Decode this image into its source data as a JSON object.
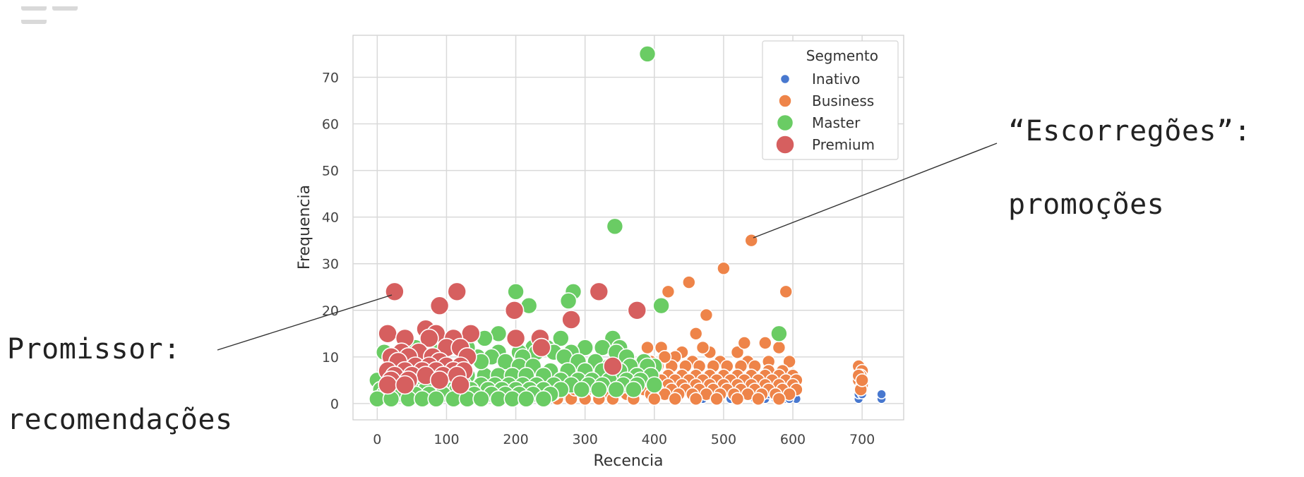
{
  "annotations": {
    "right_line1": "“Escorregões”:",
    "right_line2": "promoções",
    "left_line1": "Promissor:",
    "left_line2": "recomendações"
  },
  "chart_data": {
    "type": "scatter",
    "xlabel": "Recencia",
    "ylabel": "Frequencia",
    "xlim": [
      -35,
      760
    ],
    "ylim": [
      -3.5,
      79
    ],
    "xticks": [
      0,
      100,
      200,
      300,
      400,
      500,
      600,
      700
    ],
    "yticks": [
      0,
      10,
      20,
      30,
      40,
      50,
      60,
      70
    ],
    "grid": true,
    "legend": {
      "title": "Segmento",
      "position": "top-right"
    },
    "series": [
      {
        "name": "Inativo",
        "color": "#4878cf",
        "points": [
          [
            545,
            1
          ],
          [
            560,
            1
          ],
          [
            575,
            1
          ],
          [
            590,
            1
          ],
          [
            600,
            2
          ],
          [
            605,
            1
          ],
          [
            580,
            2
          ],
          [
            565,
            2
          ],
          [
            470,
            1
          ],
          [
            490,
            1
          ],
          [
            510,
            1
          ],
          [
            695,
            1
          ],
          [
            695,
            2
          ],
          [
            698,
            3
          ],
          [
            700,
            2
          ],
          [
            728,
            1
          ],
          [
            728,
            2
          ],
          [
            520,
            1
          ],
          [
            535,
            2
          ],
          [
            550,
            2
          ],
          [
            595,
            1
          ]
        ]
      },
      {
        "name": "Business",
        "color": "#ee8449",
        "points": [
          [
            540,
            35
          ],
          [
            500,
            29
          ],
          [
            450,
            26
          ],
          [
            420,
            24
          ],
          [
            590,
            24
          ],
          [
            475,
            19
          ],
          [
            460,
            15
          ],
          [
            580,
            12
          ],
          [
            390,
            12
          ],
          [
            410,
            12
          ],
          [
            440,
            11
          ],
          [
            480,
            11
          ],
          [
            520,
            11
          ],
          [
            530,
            13
          ],
          [
            560,
            13
          ],
          [
            470,
            12
          ],
          [
            430,
            10
          ],
          [
            455,
            9
          ],
          [
            495,
            9
          ],
          [
            535,
            9
          ],
          [
            565,
            9
          ],
          [
            595,
            9
          ],
          [
            405,
            8
          ],
          [
            425,
            8
          ],
          [
            445,
            8
          ],
          [
            465,
            8
          ],
          [
            485,
            8
          ],
          [
            505,
            8
          ],
          [
            525,
            8
          ],
          [
            545,
            8
          ],
          [
            565,
            7
          ],
          [
            585,
            7
          ],
          [
            400,
            6
          ],
          [
            420,
            6
          ],
          [
            440,
            6
          ],
          [
            460,
            6
          ],
          [
            480,
            6
          ],
          [
            500,
            6
          ],
          [
            520,
            6
          ],
          [
            540,
            6
          ],
          [
            560,
            6
          ],
          [
            580,
            6
          ],
          [
            600,
            6
          ],
          [
            370,
            5
          ],
          [
            390,
            5
          ],
          [
            410,
            5
          ],
          [
            430,
            5
          ],
          [
            450,
            5
          ],
          [
            470,
            5
          ],
          [
            490,
            5
          ],
          [
            510,
            5
          ],
          [
            530,
            5
          ],
          [
            550,
            5
          ],
          [
            570,
            5
          ],
          [
            590,
            5
          ],
          [
            605,
            5
          ],
          [
            350,
            4
          ],
          [
            380,
            4
          ],
          [
            400,
            4
          ],
          [
            420,
            4
          ],
          [
            440,
            4
          ],
          [
            460,
            4
          ],
          [
            480,
            4
          ],
          [
            500,
            4
          ],
          [
            520,
            4
          ],
          [
            540,
            4
          ],
          [
            560,
            4
          ],
          [
            580,
            4
          ],
          [
            600,
            4
          ],
          [
            330,
            3
          ],
          [
            360,
            3
          ],
          [
            385,
            3
          ],
          [
            405,
            3
          ],
          [
            425,
            3
          ],
          [
            445,
            3
          ],
          [
            465,
            3
          ],
          [
            485,
            3
          ],
          [
            505,
            3
          ],
          [
            525,
            3
          ],
          [
            545,
            3
          ],
          [
            565,
            3
          ],
          [
            585,
            3
          ],
          [
            605,
            3
          ],
          [
            270,
            2
          ],
          [
            300,
            2
          ],
          [
            330,
            2
          ],
          [
            360,
            2
          ],
          [
            395,
            2
          ],
          [
            415,
            2
          ],
          [
            435,
            2
          ],
          [
            455,
            2
          ],
          [
            475,
            2
          ],
          [
            495,
            2
          ],
          [
            515,
            2
          ],
          [
            535,
            2
          ],
          [
            555,
            2
          ],
          [
            575,
            2
          ],
          [
            595,
            2
          ],
          [
            240,
            1
          ],
          [
            260,
            1
          ],
          [
            280,
            1
          ],
          [
            300,
            1
          ],
          [
            320,
            1
          ],
          [
            340,
            1
          ],
          [
            370,
            1
          ],
          [
            400,
            1
          ],
          [
            430,
            1
          ],
          [
            460,
            1
          ],
          [
            490,
            1
          ],
          [
            520,
            1
          ],
          [
            550,
            1
          ],
          [
            580,
            1
          ],
          [
            255,
            2
          ],
          [
            285,
            3
          ],
          [
            310,
            4
          ],
          [
            345,
            6
          ],
          [
            375,
            7
          ],
          [
            395,
            9
          ],
          [
            415,
            10
          ],
          [
            695,
            8
          ],
          [
            700,
            7
          ],
          [
            698,
            6
          ],
          [
            695,
            5
          ],
          [
            700,
            4
          ],
          [
            698,
            3
          ],
          [
            695,
            6
          ],
          [
            700,
            5
          ]
        ]
      },
      {
        "name": "Master",
        "color": "#6acc64",
        "points": [
          [
            390,
            75
          ],
          [
            343,
            38
          ],
          [
            200,
            24
          ],
          [
            283,
            24
          ],
          [
            276,
            22
          ],
          [
            219,
            21
          ],
          [
            410,
            21
          ],
          [
            580,
            15
          ],
          [
            175,
            15
          ],
          [
            155,
            14
          ],
          [
            265,
            14
          ],
          [
            340,
            14
          ],
          [
            300,
            12
          ],
          [
            325,
            12
          ],
          [
            350,
            12
          ],
          [
            225,
            12
          ],
          [
            245,
            12
          ],
          [
            175,
            11
          ],
          [
            205,
            11
          ],
          [
            230,
            11
          ],
          [
            255,
            11
          ],
          [
            280,
            11
          ],
          [
            345,
            11
          ],
          [
            360,
            10
          ],
          [
            385,
            9
          ],
          [
            400,
            8
          ],
          [
            210,
            10
          ],
          [
            270,
            10
          ],
          [
            290,
            9
          ],
          [
            315,
            9
          ],
          [
            335,
            8
          ],
          [
            365,
            8
          ],
          [
            390,
            8
          ],
          [
            10,
            11
          ],
          [
            25,
            10
          ],
          [
            45,
            10
          ],
          [
            70,
            9
          ],
          [
            95,
            8
          ],
          [
            120,
            8
          ],
          [
            145,
            10
          ],
          [
            165,
            10
          ],
          [
            185,
            9
          ],
          [
            205,
            8
          ],
          [
            225,
            8
          ],
          [
            250,
            7
          ],
          [
            275,
            7
          ],
          [
            300,
            7
          ],
          [
            325,
            7
          ],
          [
            350,
            7
          ],
          [
            375,
            6
          ],
          [
            395,
            6
          ],
          [
            15,
            7
          ],
          [
            35,
            7
          ],
          [
            60,
            7
          ],
          [
            80,
            6
          ],
          [
            105,
            6
          ],
          [
            130,
            6
          ],
          [
            155,
            6
          ],
          [
            175,
            6
          ],
          [
            195,
            6
          ],
          [
            215,
            6
          ],
          [
            240,
            6
          ],
          [
            265,
            5
          ],
          [
            290,
            5
          ],
          [
            310,
            5
          ],
          [
            335,
            5
          ],
          [
            360,
            5
          ],
          [
            380,
            5
          ],
          [
            0,
            5
          ],
          [
            20,
            5
          ],
          [
            40,
            5
          ],
          [
            60,
            5
          ],
          [
            80,
            4
          ],
          [
            105,
            4
          ],
          [
            125,
            4
          ],
          [
            150,
            4
          ],
          [
            170,
            4
          ],
          [
            190,
            4
          ],
          [
            210,
            4
          ],
          [
            230,
            4
          ],
          [
            255,
            4
          ],
          [
            280,
            4
          ],
          [
            305,
            4
          ],
          [
            325,
            4
          ],
          [
            355,
            4
          ],
          [
            375,
            4
          ],
          [
            400,
            4
          ],
          [
            5,
            3
          ],
          [
            25,
            3
          ],
          [
            50,
            3
          ],
          [
            70,
            3
          ],
          [
            90,
            3
          ],
          [
            115,
            3
          ],
          [
            135,
            3
          ],
          [
            160,
            3
          ],
          [
            180,
            3
          ],
          [
            200,
            3
          ],
          [
            220,
            3
          ],
          [
            240,
            3
          ],
          [
            265,
            3
          ],
          [
            295,
            3
          ],
          [
            320,
            3
          ],
          [
            345,
            3
          ],
          [
            370,
            3
          ],
          [
            10,
            2
          ],
          [
            30,
            2
          ],
          [
            55,
            2
          ],
          [
            75,
            2
          ],
          [
            95,
            2
          ],
          [
            120,
            2
          ],
          [
            140,
            2
          ],
          [
            165,
            2
          ],
          [
            185,
            2
          ],
          [
            205,
            2
          ],
          [
            225,
            2
          ],
          [
            250,
            2
          ],
          [
            0,
            1
          ],
          [
            20,
            1
          ],
          [
            45,
            1
          ],
          [
            65,
            1
          ],
          [
            85,
            1
          ],
          [
            110,
            1
          ],
          [
            130,
            1
          ],
          [
            150,
            1
          ],
          [
            175,
            1
          ],
          [
            195,
            1
          ],
          [
            215,
            1
          ],
          [
            240,
            1
          ],
          [
            150,
            9
          ],
          [
            130,
            12
          ],
          [
            100,
            13
          ],
          [
            85,
            11
          ],
          [
            55,
            12
          ]
        ]
      },
      {
        "name": "Premium",
        "color": "#d65f5f",
        "points": [
          [
            25,
            24
          ],
          [
            115,
            24
          ],
          [
            320,
            24
          ],
          [
            90,
            21
          ],
          [
            375,
            20
          ],
          [
            198,
            20
          ],
          [
            280,
            18
          ],
          [
            70,
            16
          ],
          [
            15,
            15
          ],
          [
            85,
            15
          ],
          [
            135,
            15
          ],
          [
            40,
            14
          ],
          [
            75,
            14
          ],
          [
            110,
            14
          ],
          [
            200,
            14
          ],
          [
            235,
            14
          ],
          [
            100,
            12
          ],
          [
            120,
            12
          ],
          [
            237,
            12
          ],
          [
            35,
            11
          ],
          [
            60,
            11
          ],
          [
            20,
            10
          ],
          [
            45,
            10
          ],
          [
            80,
            10
          ],
          [
            130,
            10
          ],
          [
            340,
            8
          ],
          [
            90,
            9
          ],
          [
            30,
            9
          ],
          [
            55,
            8
          ],
          [
            75,
            8
          ],
          [
            100,
            8
          ],
          [
            120,
            8
          ],
          [
            15,
            7
          ],
          [
            40,
            7
          ],
          [
            65,
            7
          ],
          [
            85,
            7
          ],
          [
            110,
            7
          ],
          [
            125,
            7
          ],
          [
            25,
            6
          ],
          [
            50,
            6
          ],
          [
            70,
            6
          ],
          [
            95,
            6
          ],
          [
            115,
            6
          ],
          [
            20,
            5
          ],
          [
            45,
            5
          ],
          [
            90,
            5
          ],
          [
            15,
            4
          ],
          [
            40,
            4
          ],
          [
            120,
            4
          ]
        ]
      }
    ]
  }
}
